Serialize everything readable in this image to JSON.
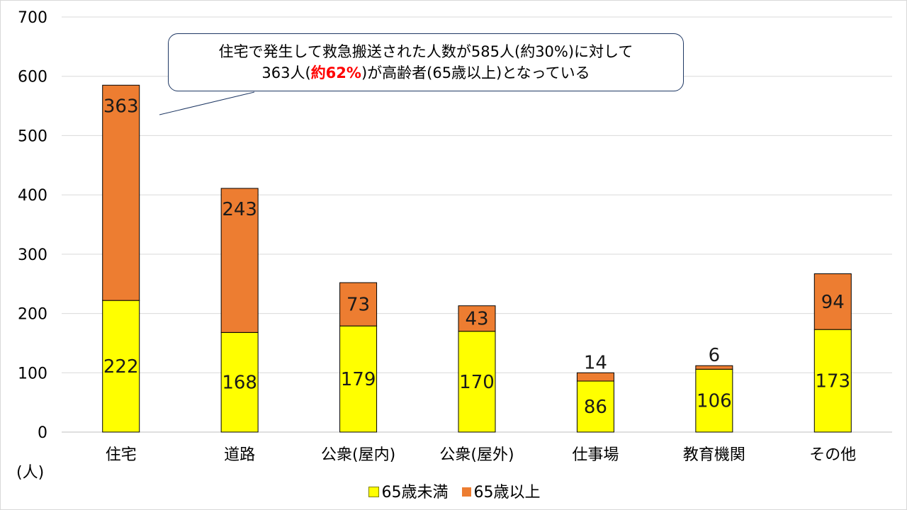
{
  "chart_data": {
    "type": "bar",
    "stacked": true,
    "categories": [
      "住宅",
      "道路",
      "公衆(屋内)",
      "公衆(屋外)",
      "仕事場",
      "教育機関",
      "その他"
    ],
    "series": [
      {
        "name": "65歳未満",
        "color": "#ffff00",
        "values": [
          222,
          168,
          179,
          170,
          86,
          106,
          173
        ]
      },
      {
        "name": "65歳以上",
        "color": "#ed7d31",
        "values": [
          363,
          243,
          73,
          43,
          14,
          6,
          94
        ]
      }
    ],
    "yticks": [
      "0",
      "100",
      "200",
      "300",
      "400",
      "500",
      "600",
      "700"
    ],
    "ylim": [
      0,
      700
    ],
    "ylabel": "(人)",
    "grid": true,
    "legend_position": "bottom"
  },
  "callout": {
    "line1": "住宅で発生して救急搬送された人数が585人(約30%)に対して",
    "line2_before": "363人(",
    "line2_highlight": "約62%",
    "line2_after": ")が高齢者(65歳以上)となっている",
    "highlight_color": "#ff0000"
  }
}
